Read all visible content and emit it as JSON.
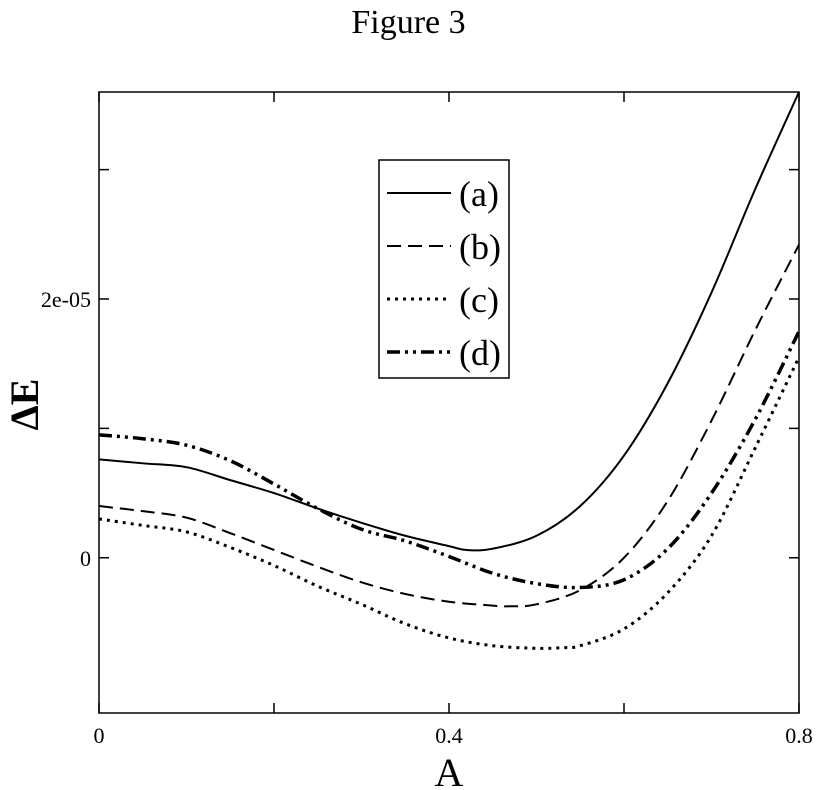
{
  "chart_data": {
    "type": "line",
    "title": "Figure 3",
    "xlabel": "A",
    "ylabel": "ΔE",
    "xlim": [
      0,
      0.8
    ],
    "ylim": [
      -1.2e-05,
      3.6e-05
    ],
    "xticks": [
      0,
      0.2,
      0.4,
      0.6,
      0.8
    ],
    "xtick_labels": [
      "0",
      "",
      "0.4",
      "",
      "0.8"
    ],
    "yticks": [
      0,
      1e-05,
      2e-05,
      3e-05
    ],
    "ytick_labels": [
      "0",
      "",
      "2e-05",
      ""
    ],
    "grid": false,
    "legend_position": "top-center",
    "series": [
      {
        "name": "(a)",
        "style": "solid",
        "x": [
          0,
          0.05,
          0.1,
          0.15,
          0.2,
          0.25,
          0.3,
          0.35,
          0.4,
          0.42,
          0.45,
          0.5,
          0.55,
          0.6,
          0.65,
          0.7,
          0.75,
          0.8
        ],
        "y": [
          7.6e-06,
          7.3e-06,
          7e-06,
          6e-06,
          5e-06,
          3.8e-06,
          2.7e-06,
          1.7e-06,
          9e-07,
          6e-07,
          7e-07,
          1.7e-06,
          4e-06,
          7.9e-06,
          1.35e-05,
          2.05e-05,
          2.85e-05,
          3.6e-05
        ]
      },
      {
        "name": "(b)",
        "style": "dashed",
        "x": [
          0,
          0.05,
          0.1,
          0.15,
          0.2,
          0.25,
          0.3,
          0.35,
          0.4,
          0.45,
          0.47,
          0.5,
          0.55,
          0.6,
          0.65,
          0.7,
          0.75,
          0.8
        ],
        "y": [
          4e-06,
          3.6e-06,
          3.1e-06,
          1.9e-06,
          6e-07,
          -7e-07,
          -1.9e-06,
          -2.8e-06,
          -3.4e-06,
          -3.7e-06,
          -3.75e-06,
          -3.6e-06,
          -2.5e-06,
          0.0,
          4.4e-06,
          1.06e-05,
          1.76e-05,
          2.42e-05
        ]
      },
      {
        "name": "(c)",
        "style": "dotted",
        "x": [
          0,
          0.05,
          0.1,
          0.15,
          0.2,
          0.25,
          0.3,
          0.35,
          0.4,
          0.45,
          0.5,
          0.53,
          0.55,
          0.6,
          0.65,
          0.7,
          0.75,
          0.8
        ],
        "y": [
          3e-06,
          2.5e-06,
          2e-06,
          8e-07,
          -6e-07,
          -2.2e-06,
          -3.6e-06,
          -5.1e-06,
          -6.2e-06,
          -6.8e-06,
          -7e-06,
          -6.95e-06,
          -6.8e-06,
          -5.5e-06,
          -2.7e-06,
          1.7e-06,
          8.5e-06,
          1.55e-05
        ]
      },
      {
        "name": "(d)",
        "style": "dashdot",
        "x": [
          0,
          0.05,
          0.1,
          0.15,
          0.2,
          0.25,
          0.3,
          0.35,
          0.4,
          0.45,
          0.5,
          0.55,
          0.6,
          0.65,
          0.7,
          0.75,
          0.8
        ],
        "y": [
          9.5e-06,
          9.2e-06,
          8.7e-06,
          7.5e-06,
          5.7e-06,
          3.8e-06,
          2.2e-06,
          1.3e-06,
          1e-07,
          -1.2e-06,
          -2e-06,
          -2.3e-06,
          -1.7e-06,
          7e-07,
          5e-06,
          1.07e-05,
          1.75e-05
        ]
      }
    ]
  }
}
